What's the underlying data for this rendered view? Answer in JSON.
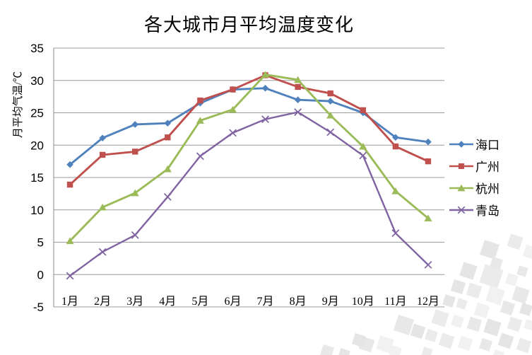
{
  "chart_data": {
    "type": "line",
    "title": "各大城市月平均温度变化",
    "ylabel": "月平均气温/℃",
    "xlabel": "",
    "categories": [
      "1月",
      "2月",
      "3月",
      "4月",
      "5月",
      "6月",
      "7月",
      "8月",
      "9月",
      "10月",
      "11月",
      "12月"
    ],
    "series": [
      {
        "id": "haikou",
        "name": "海口",
        "color": "#4F81BD",
        "marker": "diamond",
        "values": [
          17,
          21.1,
          23.2,
          23.4,
          26.5,
          28.6,
          28.8,
          27,
          26.8,
          25,
          21.2,
          20.5
        ]
      },
      {
        "id": "guangzhou",
        "name": "广州",
        "color": "#C0504D",
        "marker": "square",
        "values": [
          13.9,
          18.5,
          19,
          21.2,
          26.9,
          28.6,
          30.8,
          29,
          28,
          25.4,
          19.8,
          17.5
        ]
      },
      {
        "id": "hangzhou",
        "name": "杭州",
        "color": "#9BBB59",
        "marker": "triangle",
        "values": [
          5.2,
          10.4,
          12.6,
          16.3,
          23.8,
          25.5,
          30.9,
          30.1,
          24.6,
          19.8,
          12.9,
          8.7
        ]
      },
      {
        "id": "qingdao",
        "name": "青岛",
        "color": "#8064A2",
        "marker": "x",
        "values": [
          -0.2,
          3.5,
          6.1,
          12,
          18.3,
          21.9,
          24,
          25.1,
          22,
          18.4,
          6.4,
          1.5
        ]
      }
    ],
    "ylim": [
      -5,
      35
    ],
    "yticks": [
      35,
      30,
      25,
      20,
      15,
      10,
      5,
      0,
      -5
    ],
    "grid": true,
    "legend_position": "right",
    "colors": {
      "gridline": "#9C9C9C",
      "axis": "#8C8C8C",
      "text": "#000000",
      "background": "#FFFFFF"
    }
  }
}
